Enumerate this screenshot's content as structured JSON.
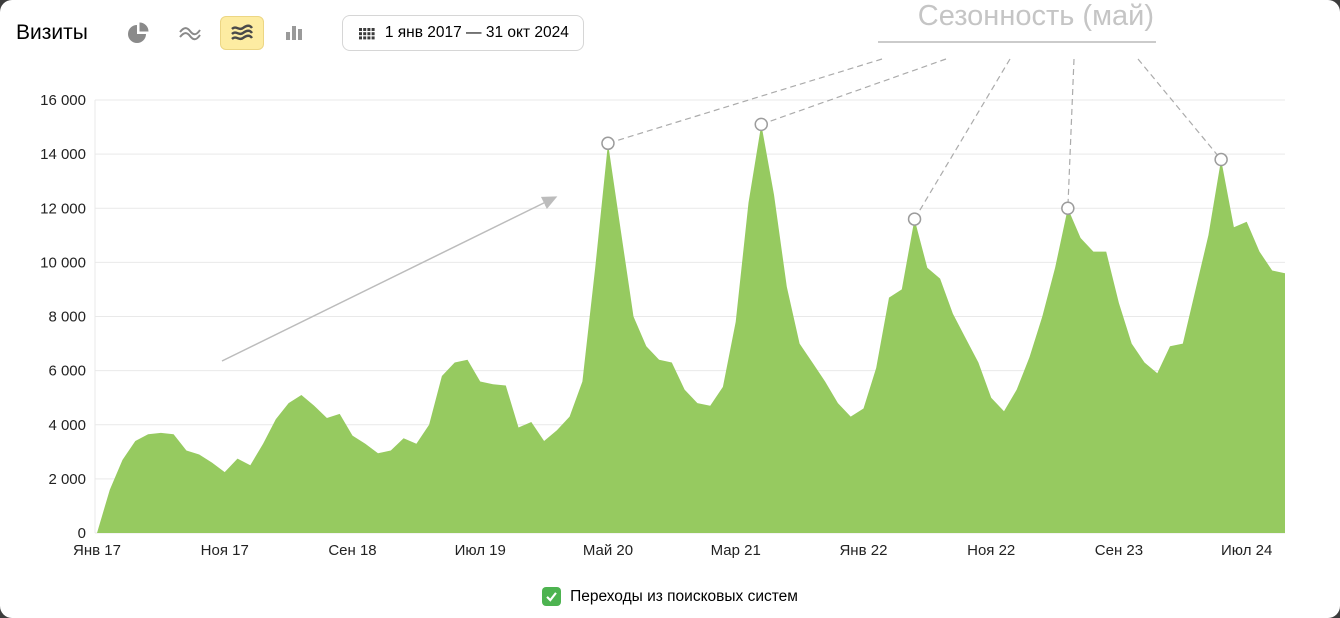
{
  "header": {
    "title": "Визиты",
    "date_range": "1 янв 2017 — 31 окт 2024",
    "chart_type_buttons": [
      {
        "name": "pie",
        "label": "Круговая диаграмма",
        "selected": false
      },
      {
        "name": "line",
        "label": "Линии",
        "selected": false
      },
      {
        "name": "area",
        "label": "Области",
        "selected": true
      },
      {
        "name": "bar",
        "label": "Колонки",
        "selected": false
      }
    ]
  },
  "annotation": {
    "label": "Сезонность (май)",
    "marker_month_indices": [
      40,
      52,
      64,
      76,
      88
    ]
  },
  "legend": {
    "label": "Переходы из поисковых систем"
  },
  "colors": {
    "area": "#96ca60",
    "legend_checkbox": "#4db350",
    "selected_button_bg": "#fdeca2",
    "selected_button_border": "#ecd684",
    "annotation_text": "#c5c5c5",
    "annotation_line": "#cbcbcb"
  },
  "chart_data": {
    "type": "area",
    "title": "Визиты",
    "x_interval": "monthly",
    "x_range": [
      "Янв 2017",
      "Окт 2024"
    ],
    "x_tick_labels": [
      "Янв 17",
      "Ноя 17",
      "Сен 18",
      "Июл 19",
      "Май 20",
      "Мар 21",
      "Янв 22",
      "Ноя 22",
      "Сен 23",
      "Июл 24"
    ],
    "x_tick_month_indices": [
      0,
      10,
      20,
      30,
      40,
      50,
      60,
      70,
      80,
      90
    ],
    "y_ticks": [
      0,
      2000,
      4000,
      6000,
      8000,
      10000,
      12000,
      14000,
      16000
    ],
    "y_tick_labels": [
      "0",
      "2 000",
      "4 000",
      "6 000",
      "8 000",
      "10 000",
      "12 000",
      "14 000",
      "16 000"
    ],
    "ylim": [
      0,
      16000
    ],
    "grid": true,
    "legend_position": "bottom-center",
    "series": [
      {
        "name": "Переходы из поисковых систем",
        "color": "#96ca60",
        "values": [
          0,
          1600,
          2700,
          3400,
          3650,
          3700,
          3650,
          3050,
          2900,
          2600,
          2250,
          2750,
          2500,
          3300,
          4200,
          4800,
          5100,
          4700,
          4250,
          4400,
          3600,
          3300,
          2950,
          3050,
          3500,
          3300,
          4000,
          5800,
          6300,
          6400,
          5600,
          5500,
          5450,
          3900,
          4100,
          3400,
          3800,
          4300,
          5600,
          9800,
          14400,
          11200,
          8000,
          6900,
          6400,
          6300,
          5300,
          4800,
          4700,
          5400,
          7800,
          12200,
          15100,
          12500,
          9100,
          7000,
          6300,
          5600,
          4800,
          4300,
          4600,
          6100,
          8700,
          9000,
          11600,
          9800,
          9400,
          8100,
          7200,
          6300,
          5000,
          4500,
          5300,
          6500,
          8000,
          9800,
          12000,
          10900,
          10400,
          10400,
          8500,
          7000,
          6300,
          5900,
          6900,
          7000,
          9000,
          11000,
          13800,
          11300,
          11500,
          10400,
          9700,
          9600
        ]
      }
    ]
  }
}
